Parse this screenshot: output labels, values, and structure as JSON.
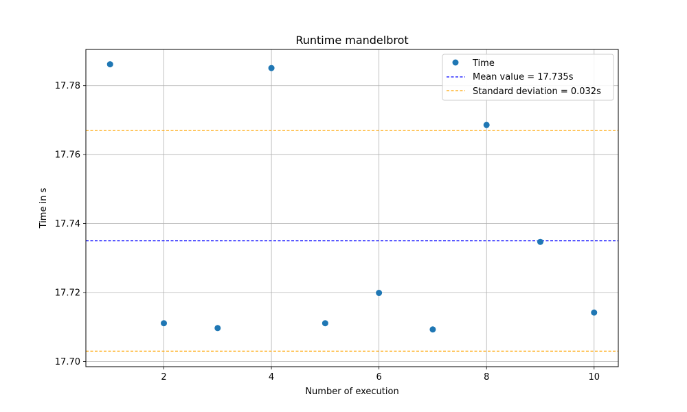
{
  "chart_data": {
    "type": "scatter",
    "title": "Runtime mandelbrot",
    "xlabel": "Number of execution",
    "ylabel": "Time in s",
    "xlim": [
      0.55,
      10.45
    ],
    "ylim": [
      17.6985,
      17.7905
    ],
    "xticks": [
      2,
      4,
      6,
      8,
      10
    ],
    "xtick_labels": [
      "2",
      "4",
      "6",
      "8",
      "10"
    ],
    "yticks": [
      17.7,
      17.72,
      17.74,
      17.76,
      17.78
    ],
    "ytick_labels": [
      "17.70",
      "17.72",
      "17.74",
      "17.76",
      "17.78"
    ],
    "grid": true,
    "legend_position": "top-right",
    "series": [
      {
        "name": "Time",
        "color": "#1f77b4",
        "x": [
          1,
          2,
          3,
          4,
          5,
          6,
          7,
          8,
          9,
          10
        ],
        "y": [
          17.7862,
          17.7111,
          17.7097,
          17.7851,
          17.7111,
          17.7199,
          17.7093,
          17.7686,
          17.7347,
          17.7142
        ]
      }
    ],
    "reference_lines": [
      {
        "label": "Mean value = 17.735s",
        "y": 17.735,
        "color": "#0000ff"
      },
      {
        "label": "Standard deviation = 0.032s",
        "y": 17.767,
        "color": "#ffa500"
      },
      {
        "label": "",
        "y": 17.703,
        "color": "#ffa500"
      }
    ]
  }
}
